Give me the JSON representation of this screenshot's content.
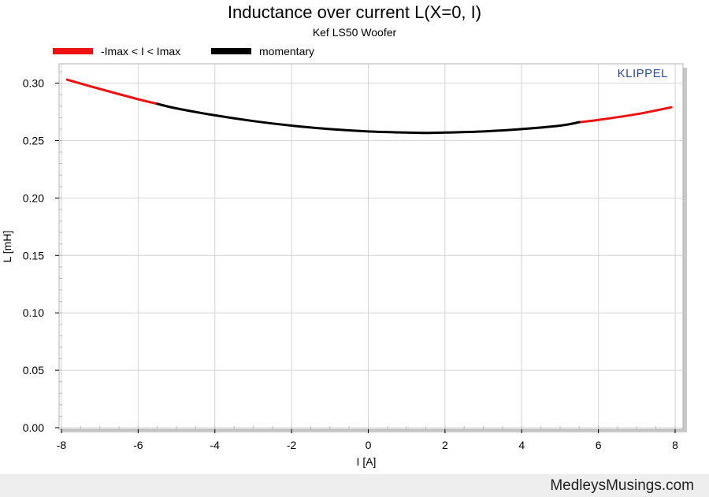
{
  "chart_data": {
    "type": "line",
    "title": "Inductance over current L(X=0, I)",
    "subtitle": "Kef LS50 Woofer",
    "xlabel": "I [A]",
    "ylabel": "L [mH]",
    "xlim": [
      -8,
      8
    ],
    "ylim": [
      0,
      0.31
    ],
    "x_ticks": [
      "-8",
      "-6",
      "-4",
      "-2",
      "0",
      "2",
      "4",
      "6",
      "8"
    ],
    "y_ticks": [
      "0.00",
      "0.05",
      "0.10",
      "0.15",
      "0.20",
      "0.25",
      "0.30"
    ],
    "grid": true,
    "watermark": "KLIPPEL",
    "legend": {
      "placement": "top-left",
      "entries": [
        {
          "label": "-Imax < I < Imax",
          "color": "#ee1111"
        },
        {
          "label": "momentary",
          "color": "#000000"
        }
      ]
    },
    "series": [
      {
        "name": "-Imax < I < Imax",
        "color": "#ee1111",
        "segments": [
          {
            "x": [
              -7.85,
              -7,
              -6,
              -5.5
            ],
            "y": [
              0.303,
              0.295,
              0.286,
              0.282
            ]
          },
          {
            "x": [
              5.5,
              6,
              7,
              7.9
            ],
            "y": [
              0.266,
              0.268,
              0.273,
              0.279
            ]
          }
        ]
      },
      {
        "name": "momentary",
        "color": "#000000",
        "segments": [
          {
            "x": [
              -5.5,
              -5,
              -4,
              -3,
              -2,
              -1,
              0,
              1,
              1.5,
              2,
              3,
              4,
              5,
              5.5
            ],
            "y": [
              0.282,
              0.278,
              0.272,
              0.267,
              0.263,
              0.26,
              0.258,
              0.257,
              0.2567,
              0.257,
              0.258,
              0.26,
              0.263,
              0.266
            ]
          }
        ]
      }
    ]
  },
  "footer": {
    "text": "MedleysMusings.com"
  }
}
